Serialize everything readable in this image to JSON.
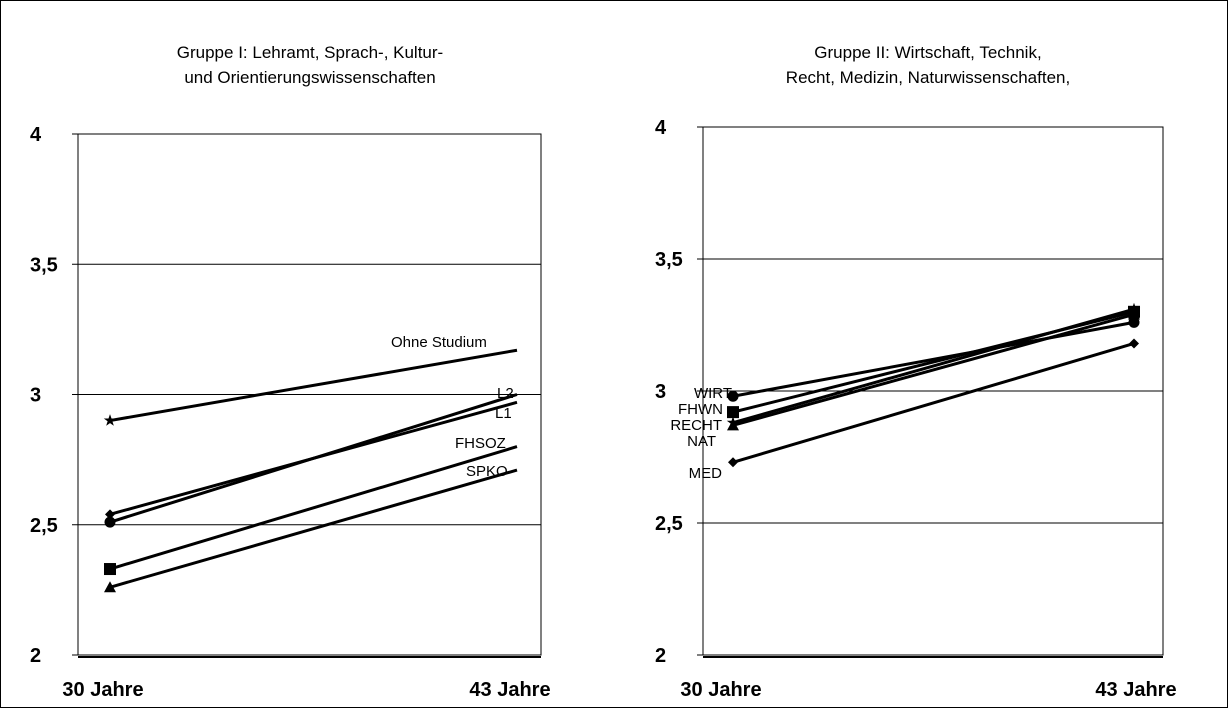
{
  "chart_data": [
    {
      "type": "line",
      "title_lines": [
        "Gruppe I: Lehramt, Sprach-, Kultur-",
        "und Orientierungswissenschaften"
      ],
      "categories": [
        "30 Jahre",
        "43 Jahre"
      ],
      "ylim": [
        2,
        4
      ],
      "y_ticks": [
        "2",
        "2,5",
        "3",
        "3,5",
        "4"
      ],
      "grid": true,
      "series": [
        {
          "name": "Ohne Studium",
          "values": [
            2.9,
            3.17
          ],
          "marker": "star"
        },
        {
          "name": "L2",
          "values": [
            2.51,
            3.0
          ],
          "marker": "circle"
        },
        {
          "name": "L1",
          "values": [
            2.54,
            2.97
          ],
          "marker": "diamond"
        },
        {
          "name": "FHSOZ",
          "values": [
            2.33,
            2.8
          ],
          "marker": "square"
        },
        {
          "name": "SPKO",
          "values": [
            2.26,
            2.71
          ],
          "marker": "triangle"
        }
      ]
    },
    {
      "type": "line",
      "title_lines": [
        "Gruppe II: Wirtschaft, Technik,",
        "Recht, Medizin, Naturwissenschaften,"
      ],
      "categories": [
        "30 Jahre",
        "43 Jahre"
      ],
      "ylim": [
        2,
        4
      ],
      "y_ticks": [
        "2",
        "2,5",
        "3",
        "3,5",
        "4"
      ],
      "grid": true,
      "series": [
        {
          "name": "WIRT",
          "values": [
            2.98,
            3.26
          ],
          "marker": "circle"
        },
        {
          "name": "FHWN",
          "values": [
            2.92,
            3.3
          ],
          "marker": "square"
        },
        {
          "name": "RECHT",
          "values": [
            2.88,
            3.31
          ],
          "marker": "star"
        },
        {
          "name": "NAT",
          "values": [
            2.87,
            3.29
          ],
          "marker": "triangle"
        },
        {
          "name": "MED",
          "values": [
            2.73,
            3.18
          ],
          "marker": "diamond"
        }
      ]
    }
  ]
}
